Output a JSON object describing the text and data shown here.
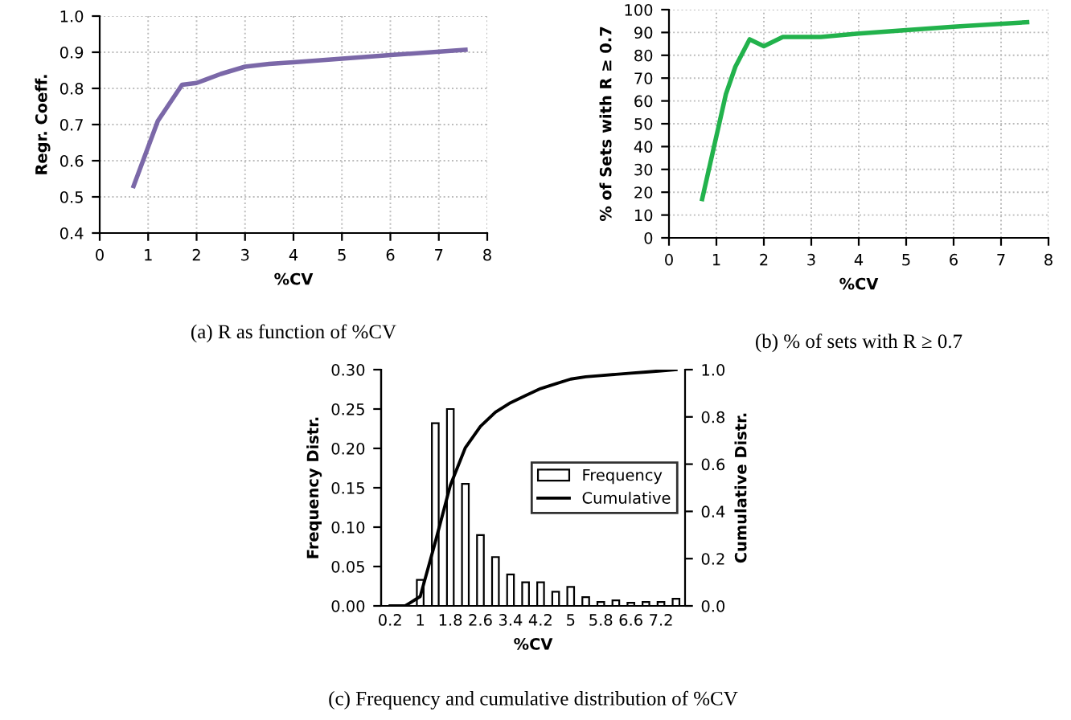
{
  "chart_data": [
    {
      "type": "line",
      "xlabel": "%CV",
      "ylabel": "Regr. Coeff.",
      "annotations": [
        "(a) R as function of %CV"
      ],
      "series": [
        {
          "color": "#7b68a8",
          "x": [
            0.7,
            1.2,
            1.4,
            1.7,
            2.0,
            2.5,
            3.0,
            3.5,
            4.0,
            5.0,
            6.0,
            7.55
          ],
          "values": [
            0.53,
            0.71,
            0.75,
            0.81,
            0.815,
            0.84,
            0.86,
            0.868,
            0.872,
            0.882,
            0.892,
            0.907
          ]
        }
      ],
      "xlim": [
        0,
        8
      ],
      "xticks": [
        0,
        1,
        2,
        3,
        4,
        5,
        6,
        7,
        8
      ],
      "ylim": [
        0.4,
        1.0
      ],
      "yticks": [
        0.4,
        0.5,
        0.6,
        0.7,
        0.8,
        0.9,
        {
          "value": 1.0,
          "label": "1.0"
        }
      ],
      "grid": true,
      "line_style": "solid"
    },
    {
      "type": "line",
      "xlabel": "%CV",
      "ylabel": "% of Sets with R ≥ 0.7",
      "annotations": [
        "(b) % of sets with R ≥ 0.7"
      ],
      "series": [
        {
          "color": "#22b24c",
          "x": [
            0.7,
            1.2,
            1.4,
            1.7,
            2.0,
            2.4,
            3.2,
            4.0,
            5.0,
            6.0,
            7.55
          ],
          "values": [
            17,
            63,
            75,
            87,
            84,
            88,
            88,
            89.5,
            91,
            92.5,
            94.5
          ]
        }
      ],
      "xlim": [
        0,
        8
      ],
      "xticks": [
        0,
        1,
        2,
        3,
        4,
        5,
        6,
        7,
        8
      ],
      "ylim": [
        0,
        100
      ],
      "yticks": [
        0,
        10,
        20,
        30,
        40,
        50,
        60,
        70,
        80,
        90,
        100
      ],
      "grid": true,
      "line_style": "solid"
    },
    {
      "type": "bar",
      "xlabel": "%CV",
      "ylabel": "Frequency Distr.",
      "y2label": "Cumulative Distr.",
      "annotations": [
        "(c) Frequency and cumulative distribution of %CV"
      ],
      "categories": [
        "0.2",
        null,
        "1",
        null,
        "1.8",
        null,
        "2.6",
        null,
        "3.4",
        null,
        "4.2",
        null,
        "5",
        null,
        "5.8",
        null,
        "6.6",
        null,
        "7.2",
        null
      ],
      "series": [
        {
          "name": "Frequency",
          "type": "bar",
          "color": "#ffffff",
          "values": [
            null,
            null,
            0.033,
            0.232,
            0.25,
            0.155,
            0.09,
            0.062,
            0.04,
            0.03,
            0.03,
            0.018,
            0.024,
            0.011,
            0.005,
            0.007,
            0.004,
            0.005,
            0.005,
            0.009
          ]
        },
        {
          "name": "Cumulative",
          "type": "line",
          "axis": "y2",
          "color": "#000000",
          "values": [
            0,
            0,
            0.04,
            0.27,
            0.51,
            0.67,
            0.76,
            0.82,
            0.86,
            0.89,
            0.92,
            0.94,
            0.96,
            0.97,
            0.975,
            0.98,
            0.985,
            0.99,
            0.995,
            1.0
          ]
        }
      ],
      "ylim": [
        0,
        0.3
      ],
      "yticks": [
        {
          "value": 0,
          "label": "0.00"
        },
        {
          "value": 0.05,
          "label": "0.05"
        },
        {
          "value": 0.1,
          "label": "0.10"
        },
        {
          "value": 0.15,
          "label": "0.15"
        },
        {
          "value": 0.2,
          "label": "0.20"
        },
        {
          "value": 0.25,
          "label": "0.25"
        },
        {
          "value": 0.3,
          "label": "0.30"
        }
      ],
      "y2lim": [
        0,
        1
      ],
      "y2ticks": [
        {
          "value": 0,
          "label": "0.0"
        },
        0.2,
        0.4,
        0.6,
        0.8,
        {
          "value": 1,
          "label": "1.0"
        }
      ],
      "legend": "right",
      "line_style": "solid"
    }
  ]
}
